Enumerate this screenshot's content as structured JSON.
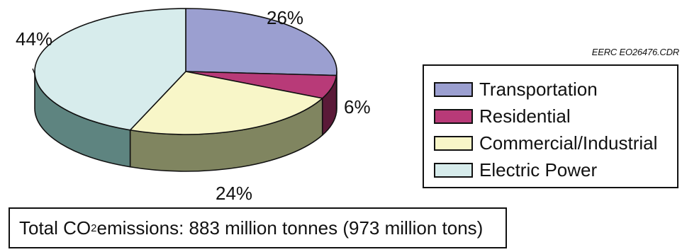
{
  "chart_data": {
    "type": "pie",
    "style": "3d",
    "categories": [
      "Transportation",
      "Residential",
      "Commercial/Industrial",
      "Electric Power"
    ],
    "values": [
      26,
      6,
      24,
      44
    ],
    "value_labels": [
      "26%",
      "6%",
      "24%",
      "44%"
    ],
    "legend": [
      "Transportation",
      "Residential",
      "Commercial/Industrial",
      "Electric Power"
    ],
    "legend_placement": "right",
    "colors": {
      "Transportation": "#9b9fd0",
      "Residential": "#b83a78",
      "Commercial/Industrial": "#f8f6c8",
      "Electric Power": "#d7ecec"
    },
    "side_colors": {
      "Transportation": "#5a5e80",
      "Residential": "#5a1a38",
      "Commercial/Industrial": "#808560",
      "Electric Power": "#5e8480"
    }
  },
  "credit": "EERC EO26476.CDR",
  "total": {
    "prefix": "Total CO",
    "subscript": "2",
    "suffix": " emissions: 883 million tonnes (973 million tons)"
  }
}
